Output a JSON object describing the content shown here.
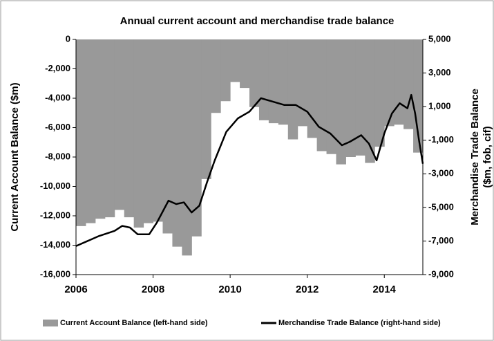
{
  "chart_data": {
    "type": "bar-line",
    "title": "Annual current account and merchandise trade balance",
    "ylabel": "Current Account Balance ($m)",
    "y2label": [
      "Merchandise Trade Balance",
      "($m, fob, cif)"
    ],
    "xlim": [
      2006,
      2015
    ],
    "xticks": [
      2006,
      2008,
      2010,
      2012,
      2014
    ],
    "ylim": [
      -16000,
      0
    ],
    "yticks": [
      0,
      {
        "value": -2000,
        "label": "-2,000"
      },
      {
        "value": -4000,
        "label": "-4,000"
      },
      {
        "value": -6000,
        "label": "-6,000"
      },
      {
        "value": -8000,
        "label": "-8,000"
      },
      {
        "value": -10000,
        "label": "-10,000"
      },
      {
        "value": -12000,
        "label": "-12,000"
      },
      {
        "value": -14000,
        "label": "-14,000"
      },
      {
        "value": -16000,
        "label": "-16,000"
      }
    ],
    "y2lim": [
      -9000,
      5000
    ],
    "y2ticks": [
      {
        "value": 5000,
        "label": "5,000"
      },
      {
        "value": 3000,
        "label": "3,000"
      },
      {
        "value": 1000,
        "label": "1,000"
      },
      {
        "value": -1000,
        "label": "-1,000"
      },
      {
        "value": -3000,
        "label": "-3,000"
      },
      {
        "value": -5000,
        "label": "-5,000"
      },
      {
        "value": -7000,
        "label": "-7,000"
      },
      {
        "value": -9000,
        "label": "-9,000"
      }
    ],
    "series": [
      {
        "name": "Current Account Balance (left-hand side)",
        "kind": "bar",
        "color": "#999999",
        "bar_width": 0.25,
        "x": [
          2006,
          2006.25,
          2006.5,
          2006.75,
          2007,
          2007.25,
          2007.5,
          2007.75,
          2008,
          2008.25,
          2008.5,
          2008.75,
          2009,
          2009.25,
          2009.5,
          2009.75,
          2010,
          2010.25,
          2010.5,
          2010.75,
          2011,
          2011.25,
          2011.5,
          2011.75,
          2012,
          2012.25,
          2012.5,
          2012.75,
          2013,
          2013.25,
          2013.5,
          2013.75,
          2014,
          2014.25,
          2014.5,
          2014.75
        ],
        "values": [
          -12700,
          -12500,
          -12200,
          -12100,
          -11600,
          -12100,
          -12800,
          -12500,
          -12400,
          -13200,
          -14100,
          -14700,
          -13400,
          -9500,
          -5000,
          -4200,
          -2900,
          -3300,
          -4600,
          -5500,
          -5700,
          -5800,
          -6800,
          -5900,
          -6700,
          -7600,
          -7800,
          -8500,
          -8000,
          -7900,
          -8400,
          -7300,
          -5900,
          -5800,
          -6100,
          -7700
        ]
      },
      {
        "name": "Merchandise Trade Balance (right-hand side)",
        "kind": "line",
        "axis": "y2",
        "color": "#000000",
        "x": [
          2006,
          2006.3,
          2006.6,
          2007,
          2007.2,
          2007.4,
          2007.6,
          2007.9,
          2008.1,
          2008.4,
          2008.6,
          2008.8,
          2009,
          2009.2,
          2009.4,
          2009.6,
          2009.9,
          2010.2,
          2010.5,
          2010.8,
          2011.1,
          2011.4,
          2011.7,
          2012,
          2012.3,
          2012.6,
          2012.9,
          2013.1,
          2013.4,
          2013.6,
          2013.8,
          2014,
          2014.2,
          2014.4,
          2014.6,
          2014.7,
          2014.8,
          2014.9,
          2015
        ],
        "values": [
          -7300,
          -7000,
          -6700,
          -6400,
          -6100,
          -6200,
          -6600,
          -6600,
          -5900,
          -4600,
          -4800,
          -4700,
          -5300,
          -4900,
          -3500,
          -2200,
          -500,
          300,
          700,
          1500,
          1300,
          1100,
          1100,
          700,
          -200,
          -600,
          -1300,
          -1100,
          -700,
          -1200,
          -2200,
          -600,
          600,
          1200,
          900,
          1700,
          600,
          -1000,
          -2400
        ]
      }
    ]
  }
}
